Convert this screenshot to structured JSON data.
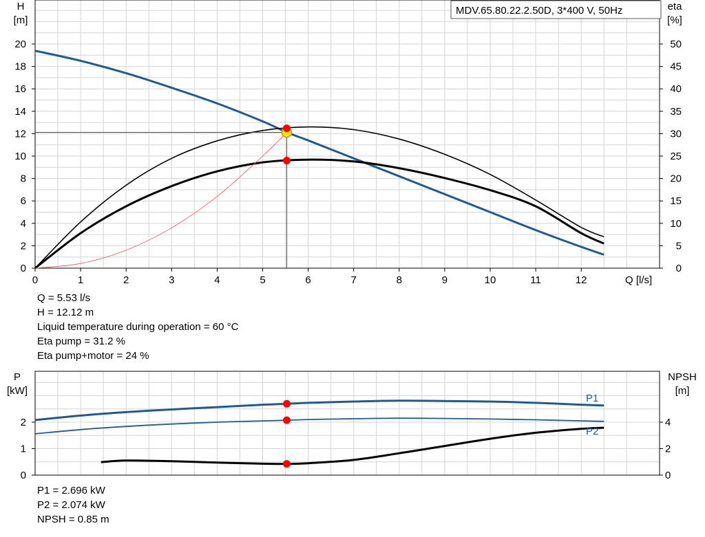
{
  "chart_data": [
    {
      "type": "line",
      "title": "MDV.65.80.22.2.50D, 3*400 V, 50Hz",
      "xlabel": "Q [l/s]",
      "ylabel_left": [
        "H",
        "[m]"
      ],
      "ylabel_right": [
        "eta",
        "[%]"
      ],
      "xlim": [
        0,
        13
      ],
      "ylim_left": [
        0,
        20
      ],
      "ylim_right": [
        0,
        50
      ],
      "x_ticks": [
        0,
        1,
        2,
        3,
        4,
        5,
        6,
        7,
        8,
        9,
        10,
        11,
        12
      ],
      "y_ticks_left": [
        0,
        2,
        4,
        6,
        8,
        10,
        12,
        14,
        16,
        18,
        20
      ],
      "y_ticks_right": [
        0,
        5,
        10,
        15,
        20,
        25,
        30,
        35,
        40,
        45,
        50
      ],
      "grid": true,
      "series": [
        {
          "axis": "left",
          "color": "#1f5a96",
          "x": [
            0,
            1,
            2,
            3,
            4,
            5,
            5.53,
            6,
            7,
            8,
            9,
            10,
            11,
            12,
            12.5
          ],
          "values": [
            19.4,
            18.5,
            17.4,
            16.1,
            14.7,
            13.1,
            12.12,
            11.4,
            9.8,
            8.2,
            6.6,
            5.0,
            3.4,
            1.9,
            1.2
          ]
        },
        {
          "axis": "right",
          "color": "#000000",
          "x": [
            0,
            1,
            2,
            3,
            4,
            5,
            6,
            7,
            8,
            9,
            10,
            11,
            12,
            12.5
          ],
          "values": [
            0,
            10.3,
            18.5,
            24.5,
            28.4,
            30.7,
            31.5,
            30.9,
            28.8,
            25.4,
            20.9,
            15.2,
            9.1,
            7.0
          ]
        },
        {
          "axis": "right",
          "color": "#000000",
          "x": [
            0,
            1,
            2,
            3,
            4,
            5,
            6,
            7,
            8,
            9,
            10,
            11,
            12,
            12.5
          ],
          "values": [
            0,
            7.8,
            13.8,
            18.3,
            21.6,
            23.6,
            24.2,
            23.8,
            22.3,
            20.1,
            17.4,
            13.8,
            7.8,
            5.5
          ]
        },
        {
          "axis": "left",
          "color": "#ff5050",
          "x": [
            0,
            1,
            2,
            3,
            4,
            5,
            5.53
          ],
          "values": [
            0,
            0.42,
            1.6,
            3.6,
            6.4,
            10.0,
            12.12
          ]
        }
      ],
      "operating_point": {
        "q": 5.53,
        "h": 12.12,
        "eta_pump": 31.2,
        "eta_total": 24.0
      }
    },
    {
      "type": "line",
      "ylabel_left": [
        "P",
        "[kW]"
      ],
      "ylabel_right": [
        "NPSH",
        "[m]"
      ],
      "xlim": [
        0,
        13
      ],
      "ylim_left": [
        0,
        3
      ],
      "ylim_right": [
        0,
        6
      ],
      "y_ticks_left": [
        0,
        1,
        2
      ],
      "y_ticks_right": [
        0,
        2,
        4
      ],
      "grid": true,
      "series": [
        {
          "name": "P1",
          "axis": "left",
          "color": "#1f5a96",
          "x": [
            0,
            1,
            2,
            3,
            4,
            5,
            5.53,
            6,
            7,
            8,
            9,
            10,
            11,
            12,
            12.5
          ],
          "values": [
            2.08,
            2.25,
            2.38,
            2.48,
            2.57,
            2.66,
            2.696,
            2.73,
            2.78,
            2.81,
            2.8,
            2.78,
            2.73,
            2.66,
            2.63
          ]
        },
        {
          "name": "P2",
          "axis": "left",
          "color": "#1f5a96",
          "x": [
            0,
            1,
            2,
            3,
            4,
            5,
            5.53,
            6,
            7,
            8,
            9,
            10,
            11,
            12,
            12.5
          ],
          "values": [
            1.56,
            1.72,
            1.84,
            1.93,
            2.0,
            2.05,
            2.074,
            2.1,
            2.13,
            2.15,
            2.14,
            2.12,
            2.09,
            2.05,
            2.03
          ]
        },
        {
          "axis": "right",
          "color": "#000000",
          "x": [
            1.45,
            2,
            3,
            4,
            5,
            5.53,
            6,
            7,
            8,
            9,
            10,
            11,
            12,
            12.5
          ],
          "values": [
            0.98,
            1.1,
            1.05,
            0.95,
            0.86,
            0.85,
            0.9,
            1.15,
            1.65,
            2.2,
            2.75,
            3.2,
            3.5,
            3.58
          ]
        }
      ],
      "operating_points": [
        {
          "axis": "left",
          "q": 5.53,
          "value": 2.696
        },
        {
          "axis": "left",
          "q": 5.53,
          "value": 2.074
        },
        {
          "axis": "right",
          "q": 5.53,
          "value": 0.85
        }
      ]
    }
  ],
  "info_top": [
    "Q = 5.53 l/s",
    "H = 12.12 m",
    "Liquid temperature during operation = 60 °C",
    "Eta pump = 31.2 %",
    "Eta pump+motor = 24 %"
  ],
  "info_bottom": [
    "P1 = 2.696 kW",
    "P2 = 2.074 kW",
    "NPSH = 0.85 m"
  ]
}
